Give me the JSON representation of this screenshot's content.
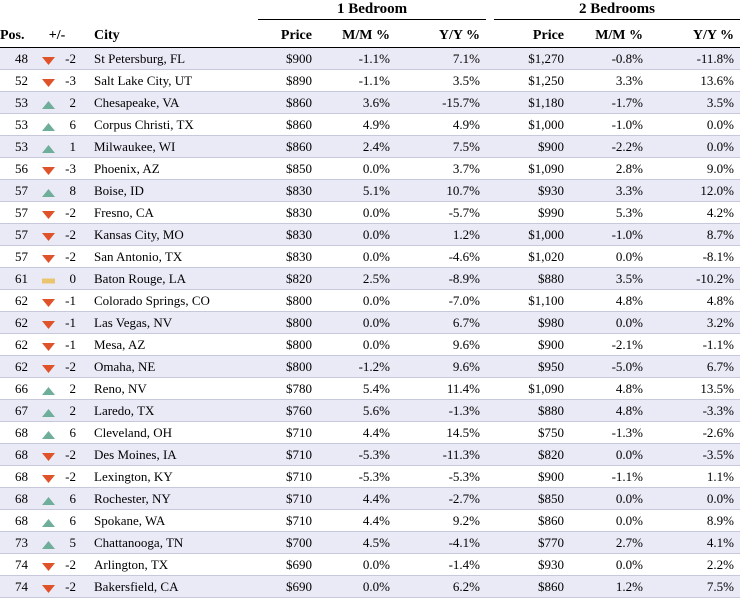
{
  "colors": {
    "up": "#6fae9b",
    "down": "#e0522a",
    "flat": "#e8c56e"
  },
  "groups": {
    "bed1": "1 Bedroom",
    "bed2": "2 Bedrooms"
  },
  "headers": {
    "pos": "Pos.",
    "chg": "+/-",
    "city": "City",
    "price": "Price",
    "mm": "M/M %",
    "yy": "Y/Y %"
  },
  "rows": [
    {
      "pos": "48",
      "dir": "down",
      "chg": "-2",
      "city": "St Petersburg, FL",
      "p1": "$900",
      "mm1": "-1.1%",
      "yy1": "7.1%",
      "p2": "$1,270",
      "mm2": "-0.8%",
      "yy2": "-11.8%"
    },
    {
      "pos": "52",
      "dir": "down",
      "chg": "-3",
      "city": "Salt Lake City, UT",
      "p1": "$890",
      "mm1": "-1.1%",
      "yy1": "3.5%",
      "p2": "$1,250",
      "mm2": "3.3%",
      "yy2": "13.6%"
    },
    {
      "pos": "53",
      "dir": "up",
      "chg": "2",
      "city": "Chesapeake, VA",
      "p1": "$860",
      "mm1": "3.6%",
      "yy1": "-15.7%",
      "p2": "$1,180",
      "mm2": "-1.7%",
      "yy2": "3.5%"
    },
    {
      "pos": "53",
      "dir": "up",
      "chg": "6",
      "city": "Corpus Christi, TX",
      "p1": "$860",
      "mm1": "4.9%",
      "yy1": "4.9%",
      "p2": "$1,000",
      "mm2": "-1.0%",
      "yy2": "0.0%"
    },
    {
      "pos": "53",
      "dir": "up",
      "chg": "1",
      "city": "Milwaukee, WI",
      "p1": "$860",
      "mm1": "2.4%",
      "yy1": "7.5%",
      "p2": "$900",
      "mm2": "-2.2%",
      "yy2": "0.0%"
    },
    {
      "pos": "56",
      "dir": "down",
      "chg": "-3",
      "city": "Phoenix, AZ",
      "p1": "$850",
      "mm1": "0.0%",
      "yy1": "3.7%",
      "p2": "$1,090",
      "mm2": "2.8%",
      "yy2": "9.0%"
    },
    {
      "pos": "57",
      "dir": "up",
      "chg": "8",
      "city": "Boise, ID",
      "p1": "$830",
      "mm1": "5.1%",
      "yy1": "10.7%",
      "p2": "$930",
      "mm2": "3.3%",
      "yy2": "12.0%"
    },
    {
      "pos": "57",
      "dir": "down",
      "chg": "-2",
      "city": "Fresno, CA",
      "p1": "$830",
      "mm1": "0.0%",
      "yy1": "-5.7%",
      "p2": "$990",
      "mm2": "5.3%",
      "yy2": "4.2%"
    },
    {
      "pos": "57",
      "dir": "down",
      "chg": "-2",
      "city": "Kansas City, MO",
      "p1": "$830",
      "mm1": "0.0%",
      "yy1": "1.2%",
      "p2": "$1,000",
      "mm2": "-1.0%",
      "yy2": "8.7%"
    },
    {
      "pos": "57",
      "dir": "down",
      "chg": "-2",
      "city": "San Antonio, TX",
      "p1": "$830",
      "mm1": "0.0%",
      "yy1": "-4.6%",
      "p2": "$1,020",
      "mm2": "0.0%",
      "yy2": "-8.1%"
    },
    {
      "pos": "61",
      "dir": "flat",
      "chg": "0",
      "city": "Baton Rouge, LA",
      "p1": "$820",
      "mm1": "2.5%",
      "yy1": "-8.9%",
      "p2": "$880",
      "mm2": "3.5%",
      "yy2": "-10.2%"
    },
    {
      "pos": "62",
      "dir": "down",
      "chg": "-1",
      "city": "Colorado Springs, CO",
      "p1": "$800",
      "mm1": "0.0%",
      "yy1": "-7.0%",
      "p2": "$1,100",
      "mm2": "4.8%",
      "yy2": "4.8%"
    },
    {
      "pos": "62",
      "dir": "down",
      "chg": "-1",
      "city": "Las Vegas, NV",
      "p1": "$800",
      "mm1": "0.0%",
      "yy1": "6.7%",
      "p2": "$980",
      "mm2": "0.0%",
      "yy2": "3.2%"
    },
    {
      "pos": "62",
      "dir": "down",
      "chg": "-1",
      "city": "Mesa, AZ",
      "p1": "$800",
      "mm1": "0.0%",
      "yy1": "9.6%",
      "p2": "$900",
      "mm2": "-2.1%",
      "yy2": "-1.1%"
    },
    {
      "pos": "62",
      "dir": "down",
      "chg": "-2",
      "city": "Omaha, NE",
      "p1": "$800",
      "mm1": "-1.2%",
      "yy1": "9.6%",
      "p2": "$950",
      "mm2": "-5.0%",
      "yy2": "6.7%"
    },
    {
      "pos": "66",
      "dir": "up",
      "chg": "2",
      "city": "Reno, NV",
      "p1": "$780",
      "mm1": "5.4%",
      "yy1": "11.4%",
      "p2": "$1,090",
      "mm2": "4.8%",
      "yy2": "13.5%"
    },
    {
      "pos": "67",
      "dir": "up",
      "chg": "2",
      "city": "Laredo, TX",
      "p1": "$760",
      "mm1": "5.6%",
      "yy1": "-1.3%",
      "p2": "$880",
      "mm2": "4.8%",
      "yy2": "-3.3%"
    },
    {
      "pos": "68",
      "dir": "up",
      "chg": "6",
      "city": "Cleveland, OH",
      "p1": "$710",
      "mm1": "4.4%",
      "yy1": "14.5%",
      "p2": "$750",
      "mm2": "-1.3%",
      "yy2": "-2.6%"
    },
    {
      "pos": "68",
      "dir": "down",
      "chg": "-2",
      "city": "Des Moines, IA",
      "p1": "$710",
      "mm1": "-5.3%",
      "yy1": "-11.3%",
      "p2": "$820",
      "mm2": "0.0%",
      "yy2": "-3.5%"
    },
    {
      "pos": "68",
      "dir": "down",
      "chg": "-2",
      "city": "Lexington, KY",
      "p1": "$710",
      "mm1": "-5.3%",
      "yy1": "-5.3%",
      "p2": "$900",
      "mm2": "-1.1%",
      "yy2": "1.1%"
    },
    {
      "pos": "68",
      "dir": "up",
      "chg": "6",
      "city": "Rochester, NY",
      "p1": "$710",
      "mm1": "4.4%",
      "yy1": "-2.7%",
      "p2": "$850",
      "mm2": "0.0%",
      "yy2": "0.0%"
    },
    {
      "pos": "68",
      "dir": "up",
      "chg": "6",
      "city": "Spokane, WA",
      "p1": "$710",
      "mm1": "4.4%",
      "yy1": "9.2%",
      "p2": "$860",
      "mm2": "0.0%",
      "yy2": "8.9%"
    },
    {
      "pos": "73",
      "dir": "up",
      "chg": "5",
      "city": "Chattanooga, TN",
      "p1": "$700",
      "mm1": "4.5%",
      "yy1": "-4.1%",
      "p2": "$770",
      "mm2": "2.7%",
      "yy2": "4.1%"
    },
    {
      "pos": "74",
      "dir": "down",
      "chg": "-2",
      "city": "Arlington, TX",
      "p1": "$690",
      "mm1": "0.0%",
      "yy1": "-1.4%",
      "p2": "$930",
      "mm2": "0.0%",
      "yy2": "2.2%"
    },
    {
      "pos": "74",
      "dir": "down",
      "chg": "-2",
      "city": "Bakersfield, CA",
      "p1": "$690",
      "mm1": "0.0%",
      "yy1": "6.2%",
      "p2": "$860",
      "mm2": "1.2%",
      "yy2": "7.5%"
    }
  ]
}
